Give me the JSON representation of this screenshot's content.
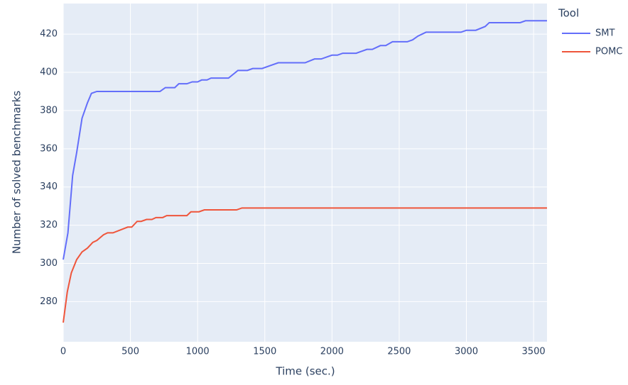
{
  "chart_data": {
    "type": "line",
    "xlabel": "Time (sec.)",
    "ylabel": "Number of solved benchmarks",
    "legend_title": "Tool",
    "legend": "right",
    "grid": true,
    "xlim": [
      0,
      3600
    ],
    "ylim": [
      259,
      436
    ],
    "xticks": [
      0,
      500,
      1000,
      1500,
      2000,
      2500,
      3000,
      3500
    ],
    "yticks": [
      280,
      300,
      320,
      340,
      360,
      380,
      400,
      420
    ],
    "series": [
      {
        "name": "SMT",
        "color": "#636efa",
        "x": [
          0,
          35,
          70,
          100,
          140,
          180,
          210,
          250,
          720,
          760,
          830,
          860,
          920,
          960,
          1000,
          1030,
          1070,
          1100,
          1230,
          1300,
          1370,
          1410,
          1480,
          1600,
          1800,
          1870,
          1920,
          2000,
          2040,
          2080,
          2180,
          2260,
          2300,
          2360,
          2400,
          2450,
          2560,
          2600,
          2640,
          2700,
          2960,
          3000,
          3070,
          3140,
          3170,
          3400,
          3440,
          3600
        ],
        "values": [
          302,
          316,
          346,
          358,
          376,
          384,
          389,
          390,
          390,
          392,
          392,
          394,
          394,
          395,
          395,
          396,
          396,
          397,
          397,
          401,
          401,
          402,
          402,
          405,
          405,
          407,
          407,
          409,
          409,
          410,
          410,
          412,
          412,
          414,
          414,
          416,
          416,
          417,
          419,
          421,
          421,
          422,
          422,
          424,
          426,
          426,
          427,
          427
        ]
      },
      {
        "name": "POMC",
        "color": "#ef553b",
        "x": [
          0,
          30,
          60,
          100,
          140,
          180,
          220,
          250,
          300,
          330,
          370,
          480,
          510,
          550,
          580,
          620,
          660,
          690,
          740,
          770,
          920,
          950,
          1010,
          1050,
          1290,
          1330,
          3600
        ],
        "values": [
          269,
          285,
          295,
          302,
          306,
          308,
          311,
          312,
          315,
          316,
          316,
          319,
          319,
          322,
          322,
          323,
          323,
          324,
          324,
          325,
          325,
          327,
          327,
          328,
          328,
          329,
          329
        ]
      }
    ]
  }
}
